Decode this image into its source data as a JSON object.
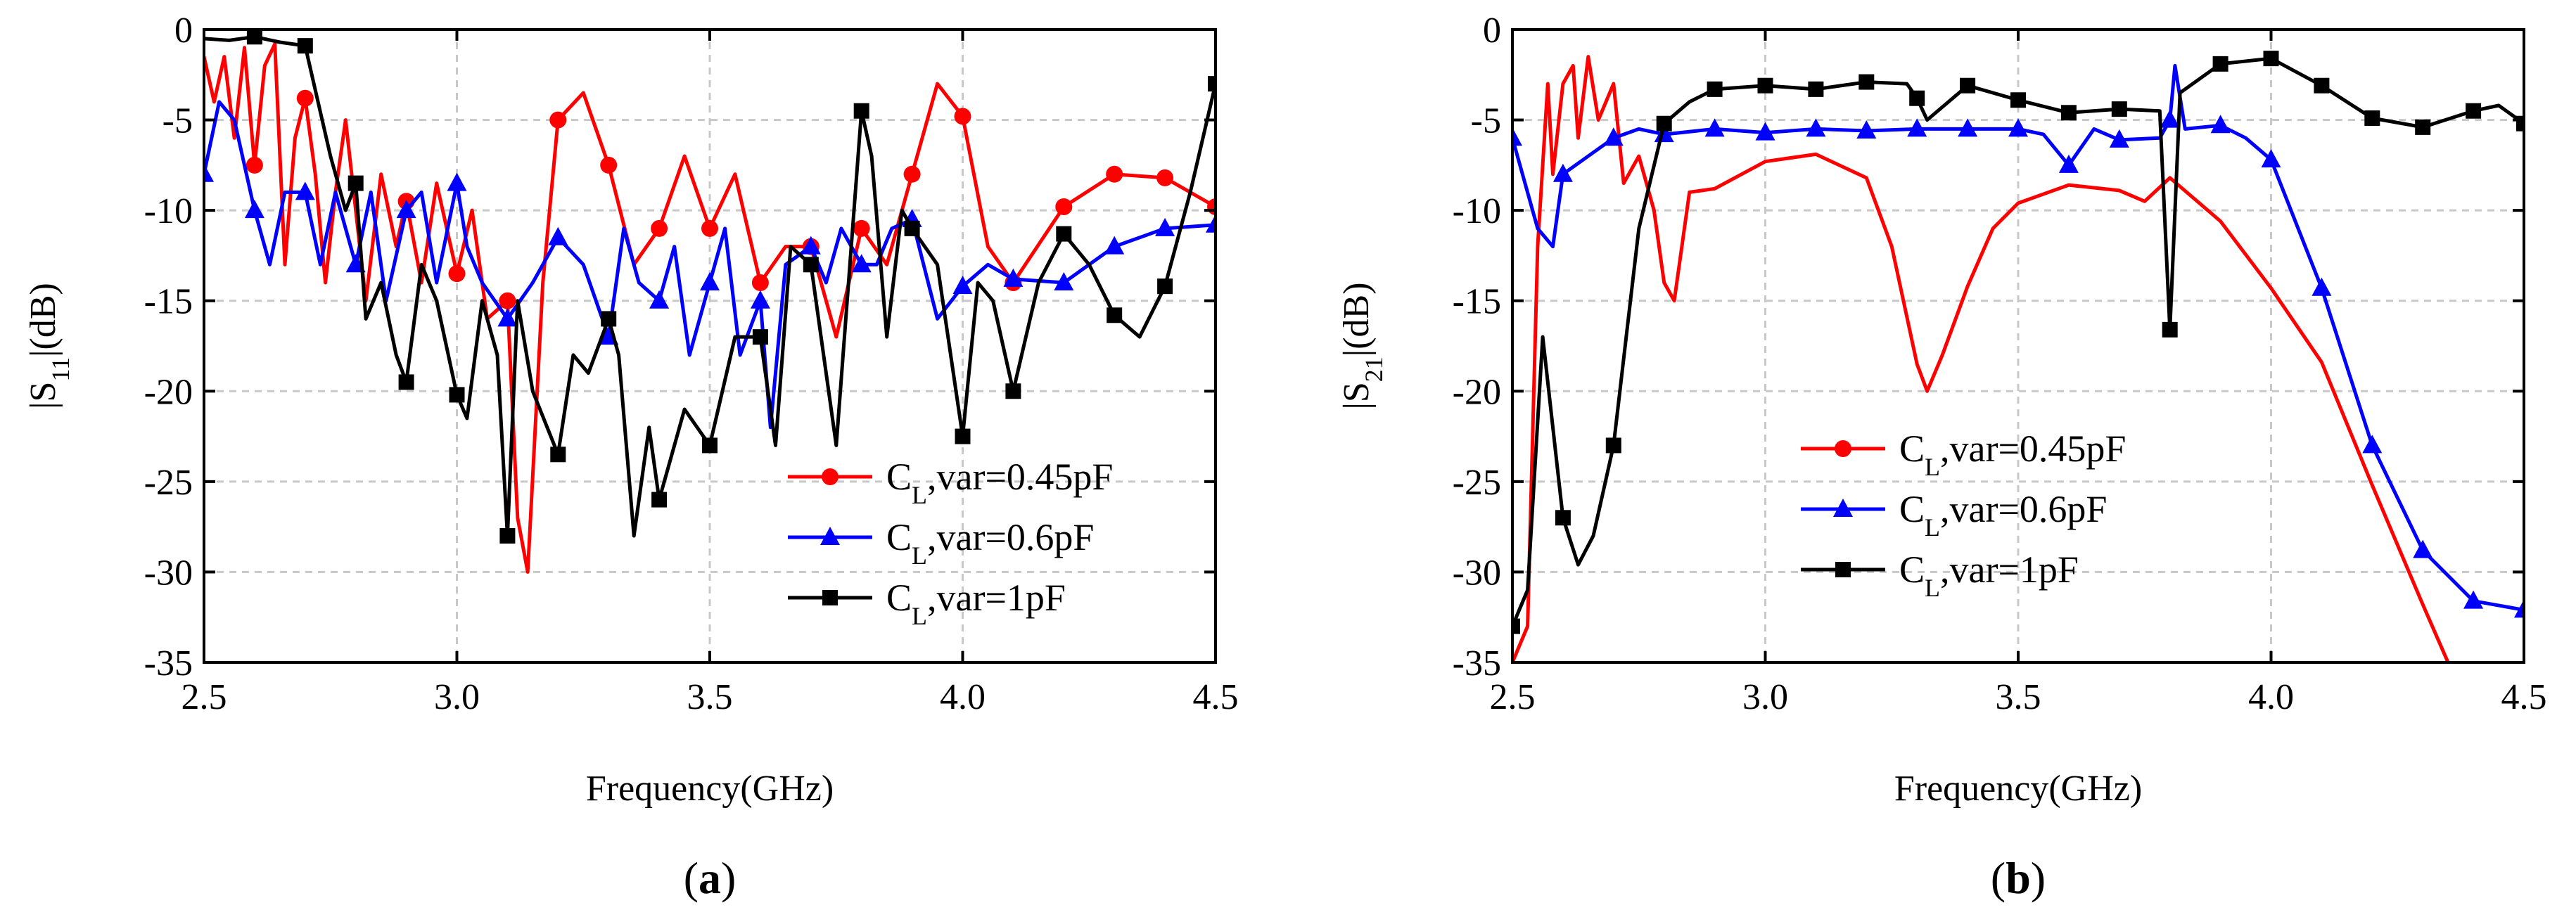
{
  "colors": {
    "red": "#ff0000",
    "blue": "#0000ff",
    "black": "#000000",
    "grid": "#c8c8c8"
  },
  "chart_data": [
    {
      "type": "line",
      "panel_label_open": "(",
      "panel_label_letter": "a",
      "panel_label_close": ")",
      "xlabel": "Frequency(GHz)",
      "ylabel_prefix": "|S",
      "ylabel_sub": "11",
      "ylabel_suffix": "|(dB)",
      "xlim": [
        2.5,
        4.5
      ],
      "ylim": [
        -35,
        0
      ],
      "xticks": [
        "2.5",
        "3.0",
        "3.5",
        "4.0",
        "4.5"
      ],
      "yticks": [
        "0",
        "-5",
        "-10",
        "-15",
        "-20",
        "-25",
        "-30",
        "-35"
      ],
      "grid": true,
      "legend_position": "lower-right",
      "series": [
        {
          "name_main": "C",
          "name_sub": "L",
          "name_rest": ",var=0.45pF",
          "color_key": "red",
          "marker": "circle",
          "x": [
            2.5,
            2.52,
            2.54,
            2.56,
            2.58,
            2.6,
            2.62,
            2.64,
            2.66,
            2.68,
            2.7,
            2.72,
            2.74,
            2.76,
            2.78,
            2.8,
            2.82,
            2.85,
            2.88,
            2.9,
            2.93,
            2.96,
            3.0,
            3.03,
            3.06,
            3.1,
            3.12,
            3.14,
            3.17,
            3.2,
            3.25,
            3.3,
            3.35,
            3.4,
            3.45,
            3.5,
            3.55,
            3.6,
            3.65,
            3.7,
            3.75,
            3.8,
            3.85,
            3.9,
            3.95,
            4.0,
            4.05,
            4.1,
            4.2,
            4.3,
            4.4,
            4.5
          ],
          "y": [
            -1.5,
            -4,
            -1.5,
            -6,
            -1,
            -7.5,
            -2,
            -0.8,
            -13,
            -6,
            -3.8,
            -8,
            -14,
            -9,
            -5,
            -10,
            -15,
            -8,
            -12,
            -9.5,
            -14,
            -8.5,
            -13.5,
            -10,
            -16,
            -15,
            -27,
            -30,
            -14,
            -5,
            -3.5,
            -7.5,
            -13,
            -11,
            -7,
            -11,
            -8,
            -14,
            -12,
            -12,
            -17,
            -11,
            -13,
            -8,
            -3,
            -4.8,
            -12,
            -14,
            -9.8,
            -8,
            -8.2,
            -9.8
          ],
          "marker_x": [
            2.6,
            2.7,
            2.9,
            3.0,
            3.1,
            3.2,
            3.3,
            3.4,
            3.5,
            3.6,
            3.7,
            3.8,
            3.9,
            4.0,
            4.1,
            4.2,
            4.3,
            4.4,
            4.5
          ]
        },
        {
          "name_main": "C",
          "name_sub": "L",
          "name_rest": ",var=0.6pF",
          "color_key": "blue",
          "marker": "triangle",
          "x": [
            2.5,
            2.53,
            2.56,
            2.6,
            2.63,
            2.66,
            2.7,
            2.73,
            2.76,
            2.8,
            2.83,
            2.86,
            2.9,
            2.93,
            2.96,
            3.0,
            3.02,
            3.05,
            3.1,
            3.15,
            3.2,
            3.25,
            3.3,
            3.33,
            3.36,
            3.4,
            3.43,
            3.46,
            3.5,
            3.53,
            3.56,
            3.6,
            3.62,
            3.65,
            3.7,
            3.73,
            3.76,
            3.8,
            3.83,
            3.86,
            3.9,
            3.95,
            4.0,
            4.05,
            4.1,
            4.2,
            4.3,
            4.4,
            4.5
          ],
          "y": [
            -8,
            -4,
            -5,
            -10,
            -13,
            -9,
            -9,
            -13,
            -9,
            -13,
            -9,
            -15,
            -10,
            -9,
            -14,
            -8.5,
            -12,
            -14,
            -16,
            -14,
            -11.5,
            -13,
            -17,
            -11,
            -14,
            -15,
            -12,
            -18,
            -14,
            -11,
            -18,
            -15,
            -22,
            -13,
            -12,
            -14,
            -11,
            -13,
            -13,
            -11,
            -10.5,
            -16,
            -14.2,
            -13,
            -13.8,
            -14,
            -12,
            -11,
            -10.8
          ],
          "marker_x": [
            2.5,
            2.6,
            2.7,
            2.8,
            2.9,
            3.0,
            3.1,
            3.2,
            3.3,
            3.4,
            3.5,
            3.6,
            3.7,
            3.8,
            3.9,
            4.0,
            4.1,
            4.2,
            4.3,
            4.4,
            4.5
          ]
        },
        {
          "name_main": "C",
          "name_sub": "L",
          "name_rest": ",var=1pF",
          "color_key": "black",
          "marker": "square",
          "x": [
            2.5,
            2.55,
            2.6,
            2.65,
            2.7,
            2.75,
            2.78,
            2.8,
            2.82,
            2.85,
            2.88,
            2.9,
            2.93,
            2.96,
            3.0,
            3.02,
            3.05,
            3.08,
            3.1,
            3.12,
            3.15,
            3.2,
            3.23,
            3.26,
            3.3,
            3.32,
            3.35,
            3.38,
            3.4,
            3.45,
            3.5,
            3.55,
            3.6,
            3.63,
            3.66,
            3.7,
            3.72,
            3.75,
            3.8,
            3.82,
            3.85,
            3.88,
            3.9,
            3.95,
            4.0,
            4.03,
            4.06,
            4.1,
            4.15,
            4.2,
            4.25,
            4.3,
            4.35,
            4.4,
            4.45,
            4.5
          ],
          "y": [
            -0.5,
            -0.6,
            -0.4,
            -0.7,
            -0.9,
            -7,
            -10,
            -8.5,
            -16,
            -14,
            -18,
            -19.5,
            -13,
            -15,
            -20.2,
            -21.5,
            -15,
            -18,
            -28,
            -15,
            -20,
            -23.5,
            -18,
            -19,
            -16,
            -18,
            -28,
            -22,
            -26,
            -21,
            -23,
            -17,
            -17,
            -23,
            -12,
            -13,
            -17,
            -23,
            -4.5,
            -7,
            -17,
            -10,
            -11,
            -13,
            -22.5,
            -14,
            -15,
            -20,
            -14,
            -11.3,
            -13,
            -15.8,
            -17,
            -14.2,
            -9,
            -3
          ],
          "marker_x": [
            2.6,
            2.7,
            2.8,
            2.9,
            3.0,
            3.1,
            3.2,
            3.3,
            3.4,
            3.5,
            3.6,
            3.7,
            3.8,
            3.9,
            4.0,
            4.1,
            4.2,
            4.3,
            4.4,
            4.5
          ]
        }
      ]
    },
    {
      "type": "line",
      "panel_label_open": "(",
      "panel_label_letter": "b",
      "panel_label_close": ")",
      "xlabel": "Frequency(GHz)",
      "ylabel_prefix": "|S",
      "ylabel_sub": "21",
      "ylabel_suffix": "|(dB)",
      "xlim": [
        2.5,
        4.5
      ],
      "ylim": [
        -35,
        0
      ],
      "xticks": [
        "2.5",
        "3.0",
        "3.5",
        "4.0",
        "4.5"
      ],
      "yticks": [
        "0",
        "-5",
        "-10",
        "-15",
        "-20",
        "-25",
        "-30",
        "-35"
      ],
      "grid": true,
      "legend_position": "center-left",
      "series": [
        {
          "name_main": "C",
          "name_sub": "L",
          "name_rest": ",var=0.45pF",
          "color_key": "red",
          "marker": "circle",
          "x": [
            2.5,
            2.53,
            2.55,
            2.57,
            2.58,
            2.6,
            2.62,
            2.63,
            2.65,
            2.67,
            2.7,
            2.72,
            2.75,
            2.78,
            2.8,
            2.82,
            2.85,
            2.9,
            3.0,
            3.1,
            3.2,
            3.25,
            3.3,
            3.32,
            3.35,
            3.4,
            3.45,
            3.5,
            3.6,
            3.7,
            3.75,
            3.8,
            3.9,
            4.0,
            4.1,
            4.2,
            4.3,
            4.35
          ],
          "y": [
            -35,
            -33,
            -12,
            -3,
            -8,
            -3,
            -2,
            -6,
            -1.5,
            -5,
            -3,
            -8.5,
            -7,
            -10,
            -14,
            -15,
            -9,
            -8.8,
            -7.3,
            -6.9,
            -8.2,
            -12,
            -18.5,
            -20,
            -18,
            -14.2,
            -11,
            -9.6,
            -8.6,
            -8.9,
            -9.5,
            -8.2,
            -10.6,
            -14.3,
            -18.4,
            -25.2,
            -31.8,
            -35
          ]
        },
        {
          "name_main": "C",
          "name_sub": "L",
          "name_rest": ",var=0.6pF",
          "color_key": "blue",
          "marker": "triangle",
          "x": [
            2.5,
            2.55,
            2.58,
            2.6,
            2.65,
            2.7,
            2.75,
            2.8,
            2.9,
            3.0,
            3.1,
            3.2,
            3.3,
            3.4,
            3.5,
            3.55,
            3.6,
            3.65,
            3.7,
            3.78,
            3.8,
            3.81,
            3.83,
            3.9,
            3.95,
            4.0,
            4.1,
            4.2,
            4.3,
            4.4,
            4.5
          ],
          "y": [
            -6,
            -11,
            -12,
            -8,
            -7,
            -6,
            -5.5,
            -5.8,
            -5.5,
            -5.7,
            -5.5,
            -5.6,
            -5.5,
            -5.5,
            -5.5,
            -5.8,
            -7.5,
            -5.5,
            -6.1,
            -6,
            -5,
            -2,
            -5.5,
            -5.3,
            -6,
            -7.2,
            -14.3,
            -23,
            -28.8,
            -31.6,
            -32.1
          ],
          "marker_x": [
            2.5,
            2.6,
            2.7,
            2.8,
            2.9,
            3.0,
            3.1,
            3.2,
            3.3,
            3.4,
            3.5,
            3.6,
            3.7,
            3.8,
            3.9,
            4.0,
            4.1,
            4.2,
            4.3,
            4.4,
            4.5
          ]
        },
        {
          "name_main": "C",
          "name_sub": "L",
          "name_rest": ",var=1pF",
          "color_key": "black",
          "marker": "square",
          "x": [
            2.5,
            2.53,
            2.56,
            2.58,
            2.6,
            2.63,
            2.66,
            2.7,
            2.75,
            2.8,
            2.85,
            2.9,
            3.0,
            3.1,
            3.2,
            3.28,
            3.3,
            3.32,
            3.4,
            3.5,
            3.6,
            3.7,
            3.78,
            3.8,
            3.82,
            3.9,
            4.0,
            4.1,
            4.2,
            4.3,
            4.4,
            4.45,
            4.5
          ],
          "y": [
            -33,
            -31,
            -17,
            -22,
            -27,
            -29.6,
            -28,
            -23,
            -11,
            -5.2,
            -4,
            -3.3,
            -3.1,
            -3.3,
            -2.9,
            -3,
            -3.8,
            -5,
            -3.1,
            -3.9,
            -4.6,
            -4.4,
            -4.5,
            -16.6,
            -3.5,
            -1.9,
            -1.6,
            -3.1,
            -4.9,
            -5.4,
            -4.5,
            -4.2,
            -5.2
          ],
          "marker_x": [
            2.5,
            2.6,
            2.7,
            2.8,
            2.9,
            3.0,
            3.1,
            3.2,
            3.3,
            3.4,
            3.5,
            3.6,
            3.7,
            3.8,
            3.9,
            4.0,
            4.1,
            4.2,
            4.3,
            4.4,
            4.5
          ]
        }
      ]
    }
  ]
}
